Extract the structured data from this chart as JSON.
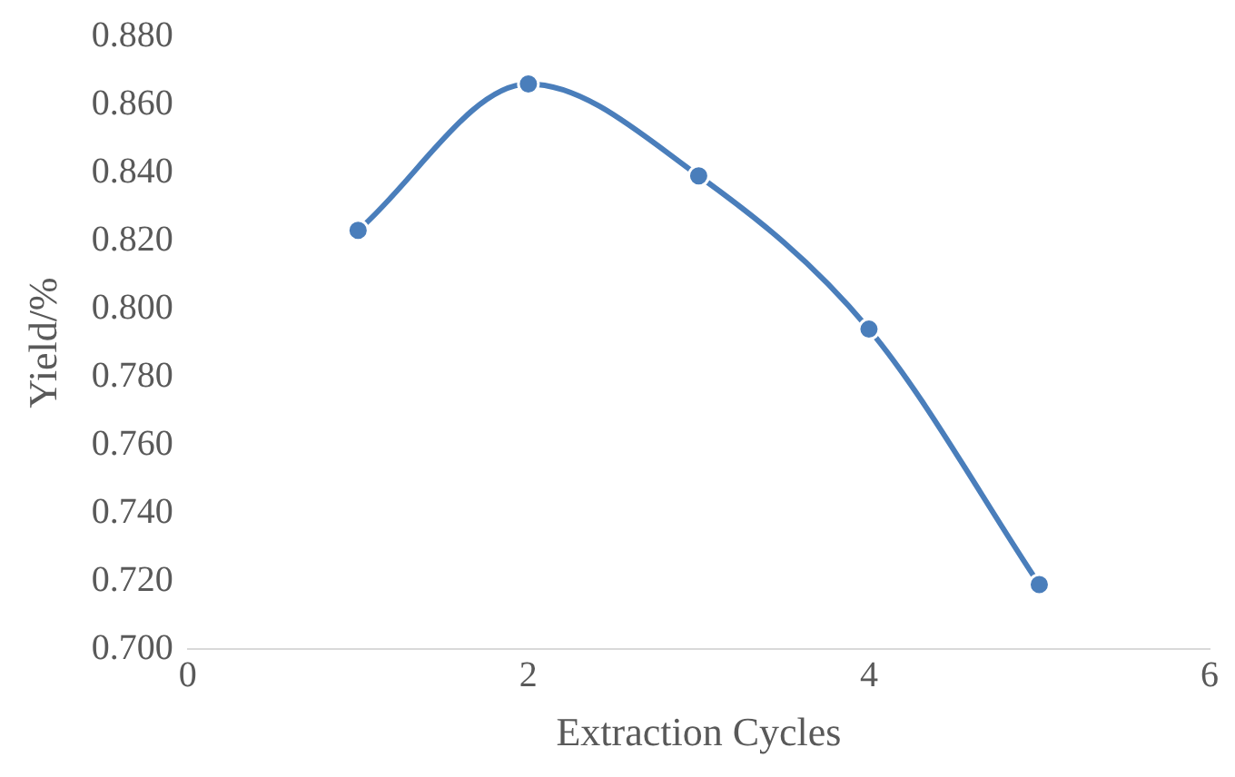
{
  "chart_data": {
    "type": "line",
    "xlabel": "Extraction Cycles",
    "ylabel": "Yield/%",
    "x": [
      1,
      2,
      3,
      4,
      5
    ],
    "series": [
      {
        "color": "#4a7ebb",
        "values": [
          0.823,
          0.866,
          0.839,
          0.794,
          0.719
        ]
      }
    ],
    "xlim": [
      0,
      6
    ],
    "xticks": [
      {
        "value": 0,
        "label": "0"
      },
      {
        "value": 2,
        "label": "2"
      },
      {
        "value": 4,
        "label": "4"
      },
      {
        "value": 6,
        "label": "6"
      }
    ],
    "ylim": [
      0.7,
      0.88
    ],
    "yticks": [
      {
        "value": 0.7,
        "label": "0.700"
      },
      {
        "value": 0.72,
        "label": "0.720"
      },
      {
        "value": 0.74,
        "label": "0.740"
      },
      {
        "value": 0.76,
        "label": "0.760"
      },
      {
        "value": 0.78,
        "label": "0.780"
      },
      {
        "value": 0.8,
        "label": "0.800"
      },
      {
        "value": 0.82,
        "label": "0.820"
      },
      {
        "value": 0.84,
        "label": "0.840"
      },
      {
        "value": 0.86,
        "label": "0.860"
      },
      {
        "value": 0.88,
        "label": "0.880"
      }
    ],
    "grid": false,
    "legend": false,
    "marker": "circle",
    "line_style": "solid"
  }
}
